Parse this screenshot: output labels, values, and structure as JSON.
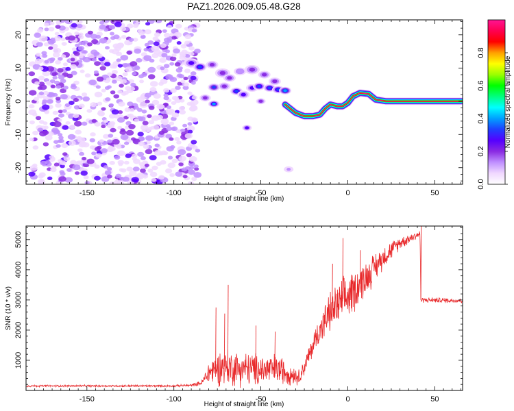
{
  "title": "PAZ1.2026.009.05.48.G28",
  "chart_data": [
    {
      "type": "heatmap",
      "name": "spectrogram",
      "xlabel": "Height of straight line (km)",
      "ylabel": "Frequency (Hz)",
      "xlim": [
        -185,
        66
      ],
      "ylim": [
        -25,
        24.5
      ],
      "xticks": [
        -150,
        -100,
        -50,
        0,
        50
      ],
      "yticks": [
        -20,
        -10,
        0,
        10,
        20
      ],
      "colorbar": {
        "label": "Normalized spectral amplitude",
        "range": [
          0,
          1
        ],
        "ticks": [
          "0.0",
          "0.2",
          "0.4",
          "0.6",
          "0.8"
        ],
        "tick_values": [
          0,
          0.2,
          0.4,
          0.6,
          0.8
        ],
        "stops": [
          "#ffffff",
          "#f0d8ff",
          "#c090ff",
          "#8a2be2",
          "#5500ff",
          "#1f3fff",
          "#00a0ff",
          "#00ffff",
          "#00ff80",
          "#00ff00",
          "#9aff00",
          "#ffff00",
          "#ffa000",
          "#ff0000",
          "#ff0050",
          "#ff1493"
        ]
      },
      "noise_region": {
        "x": [
          -182,
          -86
        ],
        "y": [
          -25,
          24.5
        ]
      },
      "features": [
        {
          "x": -90,
          "y": 11.5,
          "level": 0.2,
          "size": 2.5
        },
        {
          "x": -85,
          "y": 10.3,
          "level": 0.28,
          "size": 2.2
        },
        {
          "x": -78,
          "y": 11.0,
          "level": 0.15,
          "size": 2.0
        },
        {
          "x": -72,
          "y": 8.5,
          "level": 0.12,
          "size": 2.5
        },
        {
          "x": -68,
          "y": 7.0,
          "level": 0.14,
          "size": 2.0
        },
        {
          "x": -62,
          "y": 9.0,
          "level": 0.1,
          "size": 2.0
        },
        {
          "x": -55,
          "y": 9.5,
          "level": 0.14,
          "size": 2.5
        },
        {
          "x": -48,
          "y": 8.0,
          "level": 0.12,
          "size": 2.0
        },
        {
          "x": -42,
          "y": 6.0,
          "level": 0.18,
          "size": 2.0
        },
        {
          "x": -77,
          "y": 4.2,
          "level": 0.26,
          "size": 2.0
        },
        {
          "x": -71,
          "y": 4.5,
          "level": 0.18,
          "size": 2.0
        },
        {
          "x": -64,
          "y": 3.0,
          "level": 0.3,
          "size": 2.0
        },
        {
          "x": -60,
          "y": 2.0,
          "level": 0.2,
          "size": 2.0
        },
        {
          "x": -55,
          "y": 4.0,
          "level": 0.22,
          "size": 2.0
        },
        {
          "x": -51,
          "y": 4.5,
          "level": 0.3,
          "size": 2.0
        },
        {
          "x": -45,
          "y": 4.0,
          "level": 0.28,
          "size": 2.0
        },
        {
          "x": -40,
          "y": 3.5,
          "level": 0.3,
          "size": 2.0
        },
        {
          "x": -36,
          "y": 3.2,
          "level": 0.35,
          "size": 2.0
        },
        {
          "x": -77,
          "y": -0.8,
          "level": 0.32,
          "size": 1.8
        },
        {
          "x": -82,
          "y": 1.0,
          "level": 0.12,
          "size": 1.8
        },
        {
          "x": -50,
          "y": 0.0,
          "level": 0.15,
          "size": 1.5
        },
        {
          "x": -58,
          "y": -8.0,
          "level": 0.2,
          "size": 1.5
        },
        {
          "x": -35,
          "y": -1.5,
          "level": 0.18,
          "size": 1.5
        },
        {
          "x": -34,
          "y": -20.5,
          "level": 0.07,
          "size": 1.5
        }
      ],
      "ridge": [
        {
          "x": -36,
          "y": -1.0
        },
        {
          "x": -30,
          "y": -3.5
        },
        {
          "x": -25,
          "y": -4.5
        },
        {
          "x": -20,
          "y": -4.5
        },
        {
          "x": -16,
          "y": -4.0
        },
        {
          "x": -13,
          "y": -2.2
        },
        {
          "x": -10,
          "y": -1.0
        },
        {
          "x": -6,
          "y": -1.5
        },
        {
          "x": -3,
          "y": -1.5
        },
        {
          "x": 0,
          "y": -0.5
        },
        {
          "x": 3,
          "y": 1.5
        },
        {
          "x": 7,
          "y": 2.5
        },
        {
          "x": 12,
          "y": 2.2
        },
        {
          "x": 16,
          "y": 0.5
        },
        {
          "x": 22,
          "y": 0.0
        },
        {
          "x": 40,
          "y": 0.0
        },
        {
          "x": 66,
          "y": 0.0
        }
      ]
    },
    {
      "type": "line",
      "name": "snr",
      "xlabel": "Height of straight line (km)",
      "ylabel": "SNR (10 * v/v)",
      "xlim": [
        -185,
        66
      ],
      "ylim": [
        0,
        5450
      ],
      "xticks": [
        -150,
        -100,
        -50,
        0,
        50
      ],
      "yticks": [
        1000,
        2000,
        3000,
        4000,
        5000
      ],
      "color": "#e8282a",
      "envelope": [
        {
          "x": -185,
          "base": 150,
          "noise": 40
        },
        {
          "x": -100,
          "base": 150,
          "noise": 40
        },
        {
          "x": -90,
          "base": 170,
          "noise": 50
        },
        {
          "x": -84,
          "base": 250,
          "noise": 100
        },
        {
          "x": -80,
          "base": 600,
          "noise": 450
        },
        {
          "x": -72,
          "base": 800,
          "noise": 750
        },
        {
          "x": -65,
          "base": 750,
          "noise": 700
        },
        {
          "x": -55,
          "base": 700,
          "noise": 650
        },
        {
          "x": -40,
          "base": 700,
          "noise": 600
        },
        {
          "x": -28,
          "base": 450,
          "noise": 300
        },
        {
          "x": -24,
          "base": 900,
          "noise": 350
        },
        {
          "x": -18,
          "base": 1800,
          "noise": 500
        },
        {
          "x": -10,
          "base": 2600,
          "noise": 800
        },
        {
          "x": 0,
          "base": 3100,
          "noise": 900
        },
        {
          "x": 10,
          "base": 3700,
          "noise": 700
        },
        {
          "x": 20,
          "base": 4400,
          "noise": 450
        },
        {
          "x": 30,
          "base": 4900,
          "noise": 250
        },
        {
          "x": 38,
          "base": 5100,
          "noise": 180
        },
        {
          "x": 41.5,
          "base": 5200,
          "noise": 150
        },
        {
          "x": 42,
          "base": 3000,
          "noise": 100
        },
        {
          "x": 66,
          "base": 2980,
          "noise": 100
        }
      ],
      "spikes": [
        {
          "x": -69,
          "y": 3500
        },
        {
          "x": -76,
          "y": 2750
        },
        {
          "x": -71,
          "y": 2550
        },
        {
          "x": -53,
          "y": 2150
        },
        {
          "x": -42,
          "y": 1950
        },
        {
          "x": -9,
          "y": 4200
        },
        {
          "x": -3,
          "y": 5050
        },
        {
          "x": 7,
          "y": 4650
        },
        {
          "x": 17,
          "y": 4200
        },
        {
          "x": 42,
          "y": 5450
        }
      ]
    }
  ]
}
